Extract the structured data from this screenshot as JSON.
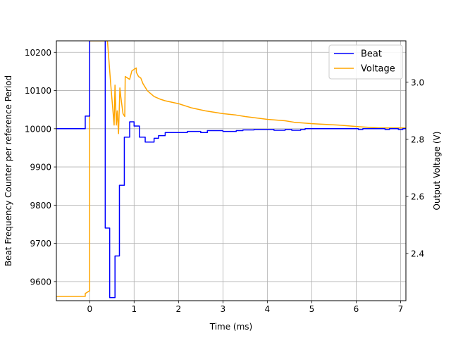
{
  "chart_data": {
    "type": "line",
    "title": "",
    "xlabel": "Time (ms)",
    "ylabel_left": "Beat Frequency Counter per reference Period",
    "ylabel_right": "Output Voltage (V)",
    "xlim": [
      -0.75,
      7.12
    ],
    "ylim_left": [
      9550,
      10230
    ],
    "ylim_right": [
      2.235,
      3.145
    ],
    "x_ticks": [
      0,
      1,
      2,
      3,
      4,
      5,
      6,
      7
    ],
    "y_ticks_left": [
      9600,
      9700,
      9800,
      9900,
      10000,
      10100,
      10200
    ],
    "y_ticks_right": [
      2.4,
      2.6,
      2.8,
      3.0
    ],
    "grid": true,
    "legend_position": "upper right",
    "series": [
      {
        "name": "Beat",
        "axis": "left",
        "color": "#0000ff",
        "step": true,
        "x": [
          -0.75,
          -0.1,
          -0.1,
          0.0,
          0.0,
          0.35,
          0.35,
          0.45,
          0.45,
          0.57,
          0.57,
          0.67,
          0.67,
          0.78,
          0.78,
          0.9,
          0.9,
          1.0,
          1.0,
          1.12,
          1.12,
          1.25,
          1.25,
          1.45,
          1.45,
          1.55,
          1.55,
          1.7,
          1.7,
          2.2,
          2.2,
          2.5,
          2.5,
          2.65,
          2.65,
          3.0,
          3.0,
          3.3,
          3.3,
          3.45,
          3.45,
          3.7,
          3.7,
          4.15,
          4.15,
          4.4,
          4.4,
          4.55,
          4.55,
          4.75,
          4.75,
          4.85,
          4.85,
          6.05,
          6.05,
          6.15,
          6.15,
          6.65,
          6.65,
          6.75,
          6.75,
          6.95,
          6.95,
          7.05,
          7.05,
          7.12
        ],
        "y": [
          10000,
          10000,
          10033,
          10033,
          10250,
          10250,
          9740,
          9740,
          9558,
          9558,
          9667,
          9667,
          9852,
          9852,
          9978,
          9978,
          10018,
          10018,
          10007,
          10007,
          9978,
          9978,
          9965,
          9965,
          9975,
          9975,
          9982,
          9982,
          9990,
          9990,
          9993,
          9993,
          9990,
          9990,
          9995,
          9995,
          9993,
          9993,
          9995,
          9995,
          9997,
          9997,
          9998,
          9998,
          9996,
          9996,
          9998,
          9998,
          9996,
          9996,
          9998,
          9998,
          10000,
          10000,
          9998,
          9998,
          10000,
          10000,
          9998,
          9998,
          10000,
          10000,
          9998,
          9998,
          10000,
          10000
        ]
      },
      {
        "name": "Voltage",
        "axis": "right",
        "color": "#ffa500",
        "x": [
          -0.75,
          -0.1,
          -0.1,
          0.0,
          0.0,
          0.02,
          0.4,
          0.47,
          0.55,
          0.57,
          0.6,
          0.62,
          0.65,
          0.68,
          0.7,
          0.75,
          0.79,
          0.8,
          0.9,
          0.95,
          1.0,
          1.05,
          1.05,
          1.1,
          1.15,
          1.2,
          1.3,
          1.45,
          1.6,
          1.7,
          2.0,
          2.3,
          2.6,
          3.0,
          3.3,
          3.5,
          4.0,
          4.4,
          4.6,
          5.0,
          5.6,
          6.0,
          6.5,
          7.12
        ],
        "y": [
          2.25,
          2.25,
          2.26,
          2.27,
          3.145,
          3.145,
          3.145,
          3.0,
          2.85,
          2.99,
          2.85,
          2.9,
          2.82,
          2.98,
          2.95,
          2.89,
          2.88,
          3.02,
          3.01,
          3.04,
          3.045,
          3.05,
          3.035,
          3.02,
          3.015,
          2.995,
          2.97,
          2.95,
          2.94,
          2.935,
          2.925,
          2.91,
          2.9,
          2.89,
          2.885,
          2.88,
          2.87,
          2.865,
          2.86,
          2.855,
          2.85,
          2.845,
          2.84,
          2.84
        ]
      }
    ]
  }
}
